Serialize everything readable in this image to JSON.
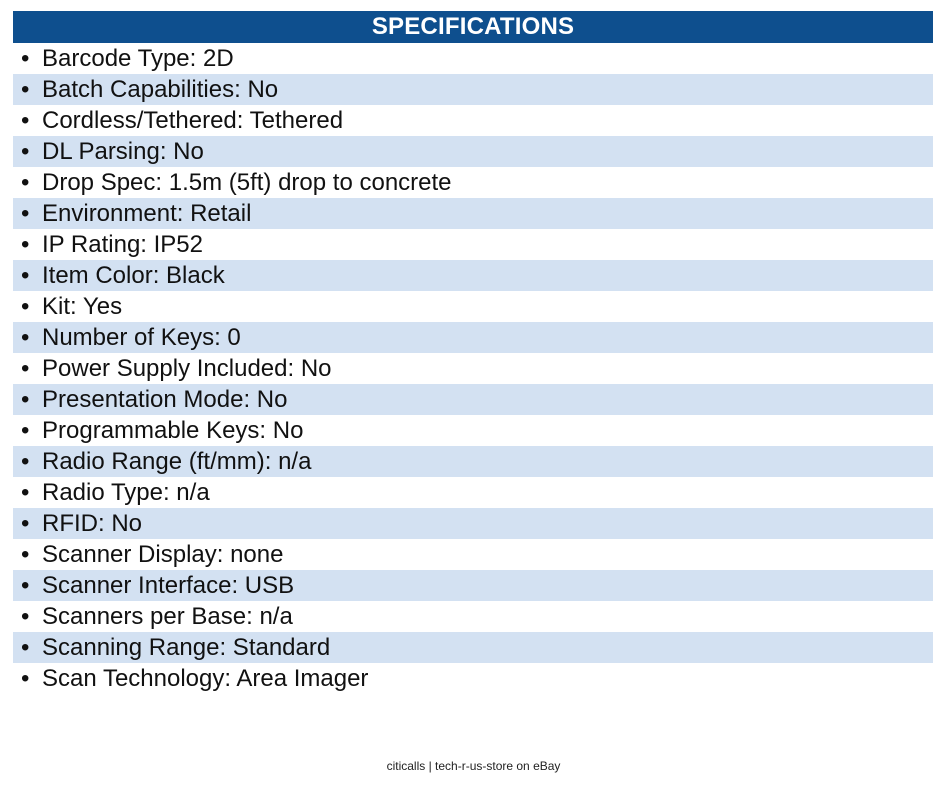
{
  "header": {
    "title": "SPECIFICATIONS"
  },
  "specs": [
    "Barcode Type: 2D",
    "Batch Capabilities: No",
    "Cordless/Tethered: Tethered",
    "DL Parsing: No",
    "Drop Spec: 1.5m (5ft) drop to concrete",
    "Environment: Retail",
    "IP Rating: IP52",
    "Item Color: Black",
    "Kit: Yes",
    "Number of Keys: 0",
    "Power Supply Included: No",
    "Presentation Mode: No",
    "Programmable Keys: No",
    "Radio Range (ft/mm): n/a",
    "Radio Type: n/a",
    "RFID: No",
    "Scanner Display: none",
    "Scanner Interface: USB",
    "Scanners per Base: n/a",
    "Scanning Range: Standard",
    "Scan Technology: Area Imager"
  ],
  "bullet": "•",
  "footer": {
    "text": "citicalls | tech-r-us-store on eBay"
  },
  "colors": {
    "header_bg": "#0e4f8e",
    "row_shade": "#d3e1f2"
  }
}
